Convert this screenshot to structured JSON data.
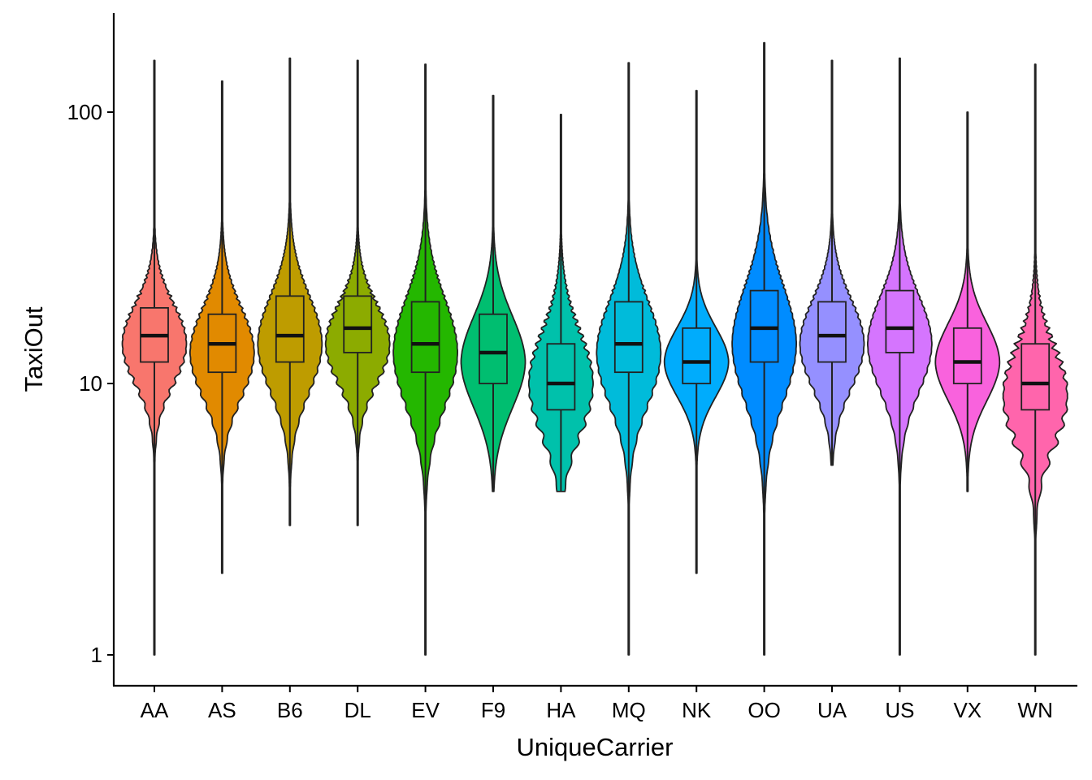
{
  "chart_data": {
    "type": "violin",
    "title": "",
    "xlabel": "UniqueCarrier",
    "ylabel": "TaxiOut",
    "y_scale": "log10",
    "ylim": [
      0.89,
      230
    ],
    "y_ticks": [
      {
        "value": 1,
        "label": "1"
      },
      {
        "value": 10,
        "label": "10"
      },
      {
        "value": 100,
        "label": "100"
      }
    ],
    "grid": false,
    "legend": "none",
    "categories": [
      "AA",
      "AS",
      "B6",
      "DL",
      "EV",
      "F9",
      "HA",
      "MQ",
      "NK",
      "OO",
      "UA",
      "US",
      "VX",
      "WN"
    ],
    "series": [
      {
        "carrier": "AA",
        "color": "#F8766D",
        "min": 1,
        "q1": 12,
        "median": 15,
        "q3": 19,
        "max": 155,
        "mode": 14,
        "spread": 1.0,
        "wiggle": 0.35
      },
      {
        "carrier": "AS",
        "color": "#E18A00",
        "min": 2,
        "q1": 11,
        "median": 14,
        "q3": 18,
        "max": 130,
        "mode": 13,
        "spread": 1.05,
        "wiggle": 0.25
      },
      {
        "carrier": "B6",
        "color": "#BE9C00",
        "min": 3,
        "q1": 12,
        "median": 15,
        "q3": 21,
        "max": 158,
        "mode": 14,
        "spread": 1.0,
        "wiggle": 0.2
      },
      {
        "carrier": "DL",
        "color": "#8CAB00",
        "min": 3,
        "q1": 13,
        "median": 16,
        "q3": 21,
        "max": 155,
        "mode": 14,
        "spread": 0.95,
        "wiggle": 0.35
      },
      {
        "carrier": "EV",
        "color": "#24B700",
        "min": 1,
        "q1": 11,
        "median": 14,
        "q3": 20,
        "max": 150,
        "mode": 13,
        "spread": 1.05,
        "wiggle": 0.2
      },
      {
        "carrier": "F9",
        "color": "#00BE70",
        "min": 4,
        "q1": 10,
        "median": 13,
        "q3": 18,
        "max": 115,
        "mode": 12,
        "spread": 0.9,
        "wiggle": 0.0
      },
      {
        "carrier": "HA",
        "color": "#00C1AB",
        "min": 4,
        "q1": 8,
        "median": 10,
        "q3": 14,
        "max": 98,
        "mode": 10,
        "spread": 1.05,
        "wiggle": 0.4
      },
      {
        "carrier": "MQ",
        "color": "#00BBDA",
        "min": 1,
        "q1": 11,
        "median": 14,
        "q3": 20,
        "max": 152,
        "mode": 13,
        "spread": 1.0,
        "wiggle": 0.2
      },
      {
        "carrier": "NK",
        "color": "#00ACFC",
        "min": 2,
        "q1": 10,
        "median": 12,
        "q3": 16,
        "max": 120,
        "mode": 12,
        "spread": 0.85,
        "wiggle": 0.0
      },
      {
        "carrier": "OO",
        "color": "#008CFF",
        "min": 1,
        "q1": 12,
        "median": 16,
        "q3": 22,
        "max": 180,
        "mode": 14,
        "spread": 1.1,
        "wiggle": 0.15
      },
      {
        "carrier": "UA",
        "color": "#9590FF",
        "min": 5,
        "q1": 12,
        "median": 15,
        "q3": 20,
        "max": 155,
        "mode": 14,
        "spread": 1.0,
        "wiggle": 0.2
      },
      {
        "carrier": "US",
        "color": "#D575FE",
        "min": 1,
        "q1": 13,
        "median": 16,
        "q3": 22,
        "max": 158,
        "mode": 14,
        "spread": 1.05,
        "wiggle": 0.15
      },
      {
        "carrier": "VX",
        "color": "#F962DD",
        "min": 4,
        "q1": 10,
        "median": 12,
        "q3": 16,
        "max": 100,
        "mode": 12,
        "spread": 0.95,
        "wiggle": 0.0
      },
      {
        "carrier": "WN",
        "color": "#FF65AC",
        "min": 1,
        "q1": 8,
        "median": 10,
        "q3": 14,
        "max": 150,
        "mode": 9,
        "spread": 1.0,
        "wiggle": 0.6
      }
    ]
  }
}
